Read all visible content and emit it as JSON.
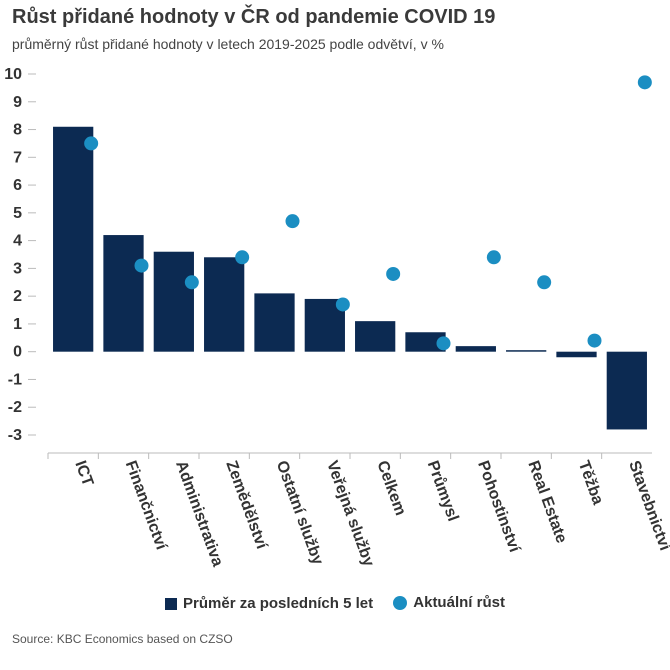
{
  "header": {
    "title": "Růst přidané hodnoty v ČR od pandemie COVID 19",
    "subtitle": "průměrný růst přidané hodnoty v letech 2019-2025 podle odvětví, v %"
  },
  "legend": {
    "bar_label": "Průměr za posledních 5 let",
    "dot_label": "Aktuální růst"
  },
  "source": "Source: KBC Economics based on CZSO",
  "colors": {
    "bar": "#0c2a52",
    "dot": "#1b8ec2",
    "grid": "#cccccc"
  },
  "chart_data": {
    "type": "bar",
    "categories": [
      "ICT",
      "Finančnictví",
      "Administrativa",
      "Zemědělství",
      "Ostatní služby",
      "Veřejná služby",
      "Celkem",
      "Průmysl",
      "Pohostinství",
      "Real Estate",
      "Těžba",
      "Stavebnictví"
    ],
    "series": [
      {
        "name": "Průměr za posledních 5 let",
        "type": "bar",
        "values": [
          8.1,
          4.2,
          3.6,
          3.4,
          2.1,
          1.9,
          1.1,
          0.7,
          0.2,
          0.0,
          -0.2,
          -2.8
        ]
      },
      {
        "name": "Aktuální růst",
        "type": "scatter",
        "values": [
          7.5,
          3.1,
          2.5,
          3.4,
          4.7,
          1.7,
          2.8,
          0.3,
          3.4,
          2.5,
          0.4,
          9.7
        ]
      }
    ],
    "ylim": [
      -3,
      10
    ],
    "yticks": [
      10,
      9,
      8,
      7,
      6,
      5,
      4,
      3,
      2,
      1,
      0,
      -1,
      -2,
      -3
    ],
    "grid": false,
    "legend_position": "bottom"
  }
}
